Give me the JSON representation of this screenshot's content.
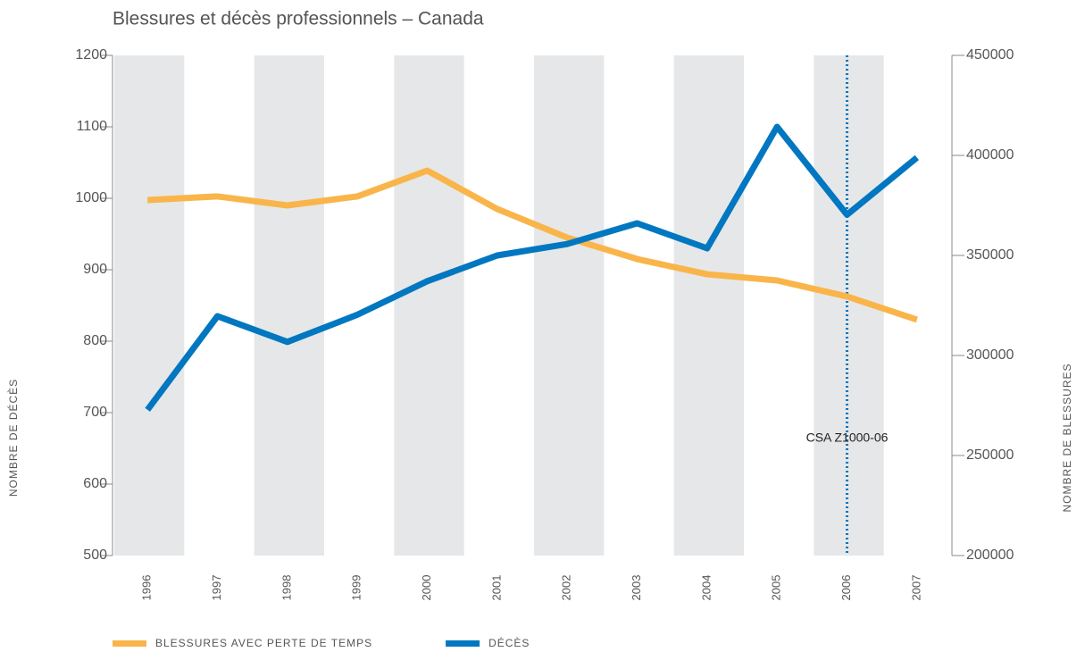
{
  "chart_data": {
    "type": "line",
    "title": "Blessures et décès professionnels – Canada",
    "ylabel": "NOMBRE DE DÉCÈS",
    "y2label": "NOMBRE DE BLESSURES",
    "categories": [
      "1996",
      "1997",
      "1998",
      "1999",
      "2000",
      "2001",
      "2002",
      "2003",
      "2004",
      "2005",
      "2006",
      "2007"
    ],
    "series": [
      {
        "name": "BLESSURES AVEC PERTE DE TEMPS",
        "color": "#f9b54a",
        "axis": "y2",
        "values": [
          377700,
          379500,
          375000,
          379500,
          392400,
          373200,
          358900,
          348200,
          340600,
          337500,
          329500,
          317900
        ]
      },
      {
        "name": "DÉCÈS",
        "color": "#0077c0",
        "values": [
          704,
          835,
          799,
          837,
          884,
          920,
          936,
          965,
          930,
          1100,
          977,
          1057
        ]
      }
    ],
    "ylim": [
      500,
      1200
    ],
    "yticks": [
      500,
      600,
      700,
      800,
      900,
      1000,
      1100,
      1200
    ],
    "y2lim": [
      200000,
      450000
    ],
    "y2ticks": [
      200000,
      250000,
      300000,
      350000,
      400000,
      450000
    ],
    "bands": true,
    "band_color": "#e6e7e8",
    "annotation": {
      "text": "CSA Z1000-06",
      "x": "2006",
      "color": "#0077c0"
    },
    "legend": "bottom-left"
  }
}
